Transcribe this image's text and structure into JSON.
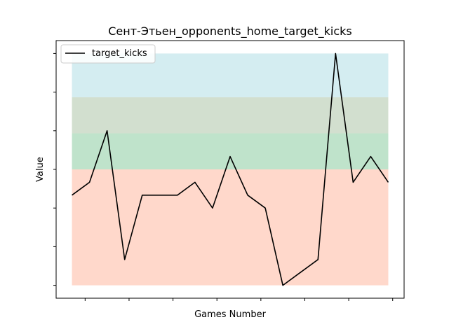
{
  "chart_data": {
    "type": "line",
    "title": "Сент-Этьен_opponents_home_target_kicks",
    "xlabel": "Games Number",
    "ylabel": "Value",
    "x": [
      1,
      2,
      3,
      4,
      5,
      6,
      7,
      8,
      9,
      10,
      11,
      12,
      13,
      14,
      15,
      16,
      17,
      18,
      19
    ],
    "series": [
      {
        "name": "target_kicks",
        "color": "#000000",
        "values": [
          3.5,
          4,
          6,
          1,
          3.5,
          3.5,
          3.5,
          4,
          3,
          5,
          3.5,
          3,
          0,
          0.5,
          1,
          9,
          4,
          5,
          4
        ]
      }
    ],
    "ylim": [
      -0.5,
      9.5
    ],
    "xlim": [
      0.1,
      19.9
    ],
    "bands": [
      {
        "from": 0,
        "to": 4.5,
        "color": "#ffd8cb"
      },
      {
        "from": 4.5,
        "to": 5.9,
        "color": "#bfe3cb"
      },
      {
        "from": 5.9,
        "to": 7.3,
        "color": "#d2dfcf"
      },
      {
        "from": 7.3,
        "to": 9.0,
        "color": "#d4edf1"
      }
    ],
    "legend_position": "top-left",
    "grid": false,
    "x_tick_labels_visible": false,
    "y_tick_labels_visible": false
  }
}
